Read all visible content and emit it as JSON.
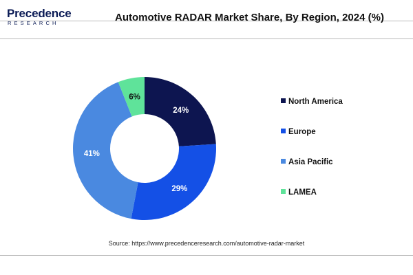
{
  "header": {
    "logo_word": "Precedence",
    "logo_sub": "RESEARCH",
    "title": "Automotive RADAR Market Share, By Region, 2024 (%)"
  },
  "source": "Source: https://www.precedenceresearch.com/automotive-radar-market",
  "chart_data": {
    "type": "pie",
    "donut": true,
    "title": "Automotive RADAR Market Share, By Region, 2024 (%)",
    "categories": [
      "North America",
      "Europe",
      "Asia Pacific",
      "LAMEA"
    ],
    "values": [
      24,
      29,
      41,
      6
    ],
    "labels": [
      "24%",
      "29%",
      "41%",
      "6%"
    ],
    "colors": [
      "#0d1550",
      "#1450e6",
      "#4a89e0",
      "#5fe39a"
    ],
    "label_colors": [
      "#ffffff",
      "#ffffff",
      "#ffffff",
      "#111111"
    ],
    "legend_position": "right"
  }
}
